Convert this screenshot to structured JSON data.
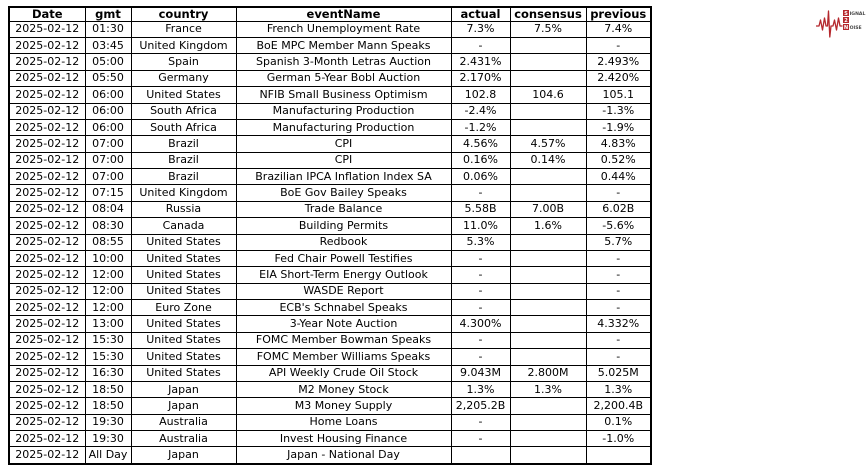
{
  "chart_data": {
    "type": "table",
    "columns": [
      "Date",
      "gmt",
      "country",
      "eventName",
      "actual",
      "consensus",
      "previous"
    ],
    "rows": [
      [
        "2025-02-12",
        "01:30",
        "France",
        "French Unemployment Rate",
        "7.3%",
        "7.5%",
        "7.4%"
      ],
      [
        "2025-02-12",
        "03:45",
        "United Kingdom",
        "BoE MPC Member Mann Speaks",
        "-",
        "",
        "-"
      ],
      [
        "2025-02-12",
        "05:00",
        "Spain",
        "Spanish 3-Month Letras Auction",
        "2.431%",
        "",
        "2.493%"
      ],
      [
        "2025-02-12",
        "05:50",
        "Germany",
        "German 5-Year Bobl Auction",
        "2.170%",
        "",
        "2.420%"
      ],
      [
        "2025-02-12",
        "06:00",
        "United States",
        "NFIB Small Business Optimism",
        "102.8",
        "104.6",
        "105.1"
      ],
      [
        "2025-02-12",
        "06:00",
        "South Africa",
        "Manufacturing Production",
        "-2.4%",
        "",
        "-1.3%"
      ],
      [
        "2025-02-12",
        "06:00",
        "South Africa",
        "Manufacturing Production",
        "-1.2%",
        "",
        "-1.9%"
      ],
      [
        "2025-02-12",
        "07:00",
        "Brazil",
        "CPI",
        "4.56%",
        "4.57%",
        "4.83%"
      ],
      [
        "2025-02-12",
        "07:00",
        "Brazil",
        "CPI",
        "0.16%",
        "0.14%",
        "0.52%"
      ],
      [
        "2025-02-12",
        "07:00",
        "Brazil",
        "Brazilian IPCA Inflation Index SA",
        "0.06%",
        "",
        "0.44%"
      ],
      [
        "2025-02-12",
        "07:15",
        "United Kingdom",
        "BoE Gov Bailey Speaks",
        "-",
        "",
        "-"
      ],
      [
        "2025-02-12",
        "08:04",
        "Russia",
        "Trade Balance",
        "5.58B",
        "7.00B",
        "6.02B"
      ],
      [
        "2025-02-12",
        "08:30",
        "Canada",
        "Building Permits",
        "11.0%",
        "1.6%",
        "-5.6%"
      ],
      [
        "2025-02-12",
        "08:55",
        "United States",
        "Redbook",
        "5.3%",
        "",
        "5.7%"
      ],
      [
        "2025-02-12",
        "10:00",
        "United States",
        "Fed Chair Powell Testifies",
        "-",
        "",
        "-"
      ],
      [
        "2025-02-12",
        "12:00",
        "United States",
        "EIA Short-Term Energy Outlook",
        "-",
        "",
        "-"
      ],
      [
        "2025-02-12",
        "12:00",
        "United States",
        "WASDE Report",
        "-",
        "",
        "-"
      ],
      [
        "2025-02-12",
        "12:00",
        "Euro Zone",
        "ECB's Schnabel Speaks",
        "-",
        "",
        "-"
      ],
      [
        "2025-02-12",
        "13:00",
        "United States",
        "3-Year Note Auction",
        "4.300%",
        "",
        "4.332%"
      ],
      [
        "2025-02-12",
        "15:30",
        "United States",
        "FOMC Member Bowman Speaks",
        "-",
        "",
        "-"
      ],
      [
        "2025-02-12",
        "15:30",
        "United States",
        "FOMC Member Williams Speaks",
        "-",
        "",
        "-"
      ],
      [
        "2025-02-12",
        "16:30",
        "United States",
        "API Weekly Crude Oil Stock",
        "9.043M",
        "2.800M",
        "5.025M"
      ],
      [
        "2025-02-12",
        "18:50",
        "Japan",
        "M2 Money Stock",
        "1.3%",
        "1.3%",
        "1.3%"
      ],
      [
        "2025-02-12",
        "18:50",
        "Japan",
        "M3 Money Supply",
        "2,205.2B",
        "",
        "2,200.4B"
      ],
      [
        "2025-02-12",
        "19:30",
        "Australia",
        "Home Loans",
        "-",
        "",
        "0.1%"
      ],
      [
        "2025-02-12",
        "19:30",
        "Australia",
        "Invest Housing Finance",
        "-",
        "",
        "-1.0%"
      ],
      [
        "2025-02-12",
        "All Day",
        "Japan",
        "Japan - National Day",
        "",
        "",
        ""
      ]
    ]
  },
  "logo": {
    "accent_color": "#b5282d",
    "signal_initial": "S",
    "signal_rest": "IGNAL",
    "middle": "2",
    "noise_initial": "N",
    "noise_rest": "OISE"
  }
}
